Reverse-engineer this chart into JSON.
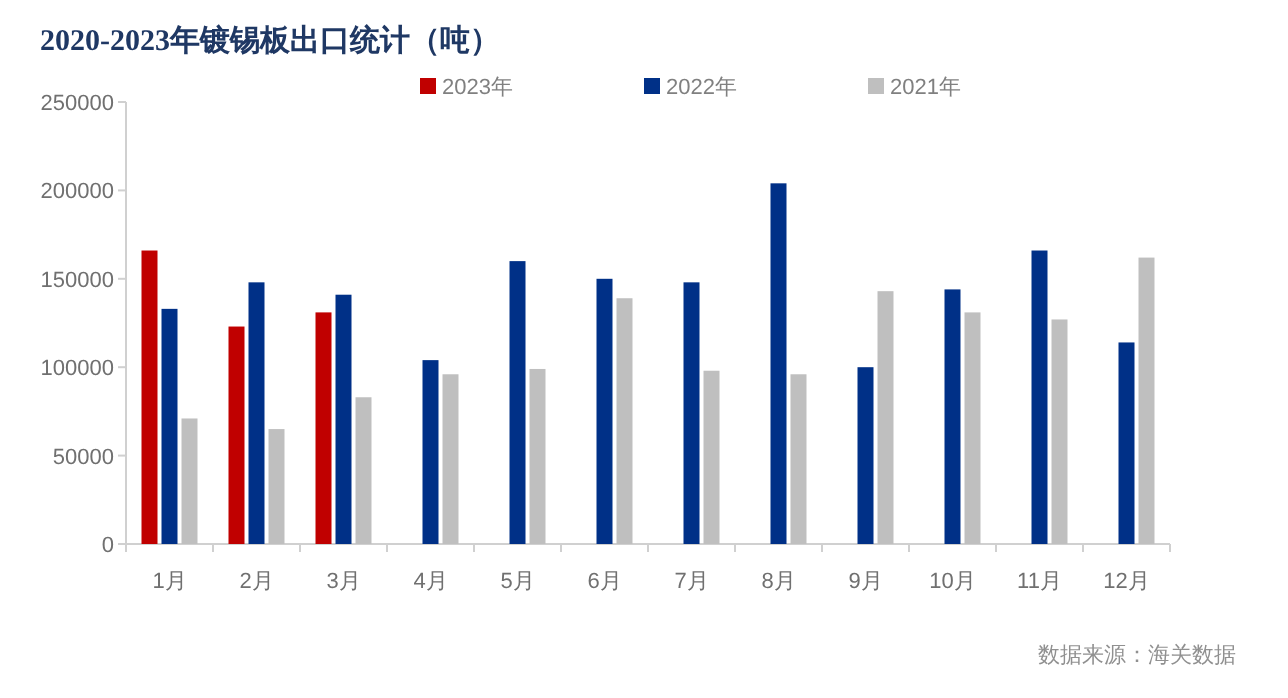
{
  "chart_data": {
    "type": "bar",
    "title": "2020-2023年镀锡板出口统计（吨）",
    "categories": [
      "1月",
      "2月",
      "3月",
      "4月",
      "5月",
      "6月",
      "7月",
      "8月",
      "9月",
      "10月",
      "11月",
      "12月"
    ],
    "series": [
      {
        "name": "2023年",
        "color": "#c00000",
        "values": [
          166000,
          123000,
          131000,
          null,
          null,
          null,
          null,
          null,
          null,
          null,
          null,
          null
        ]
      },
      {
        "name": "2022年",
        "color": "#003087",
        "values": [
          133000,
          148000,
          141000,
          104000,
          160000,
          150000,
          148000,
          204000,
          100000,
          144000,
          166000,
          114000
        ]
      },
      {
        "name": "2021年",
        "color": "#bfbfbf",
        "values": [
          71000,
          65000,
          83000,
          96000,
          99000,
          139000,
          98000,
          96000,
          143000,
          131000,
          127000,
          162000
        ]
      }
    ],
    "ylim": [
      0,
      250000
    ],
    "yticks": [
      0,
      50000,
      100000,
      150000,
      200000,
      250000
    ],
    "grid": false,
    "legend": "top",
    "annotations": [
      "数据来源：海关数据"
    ]
  }
}
